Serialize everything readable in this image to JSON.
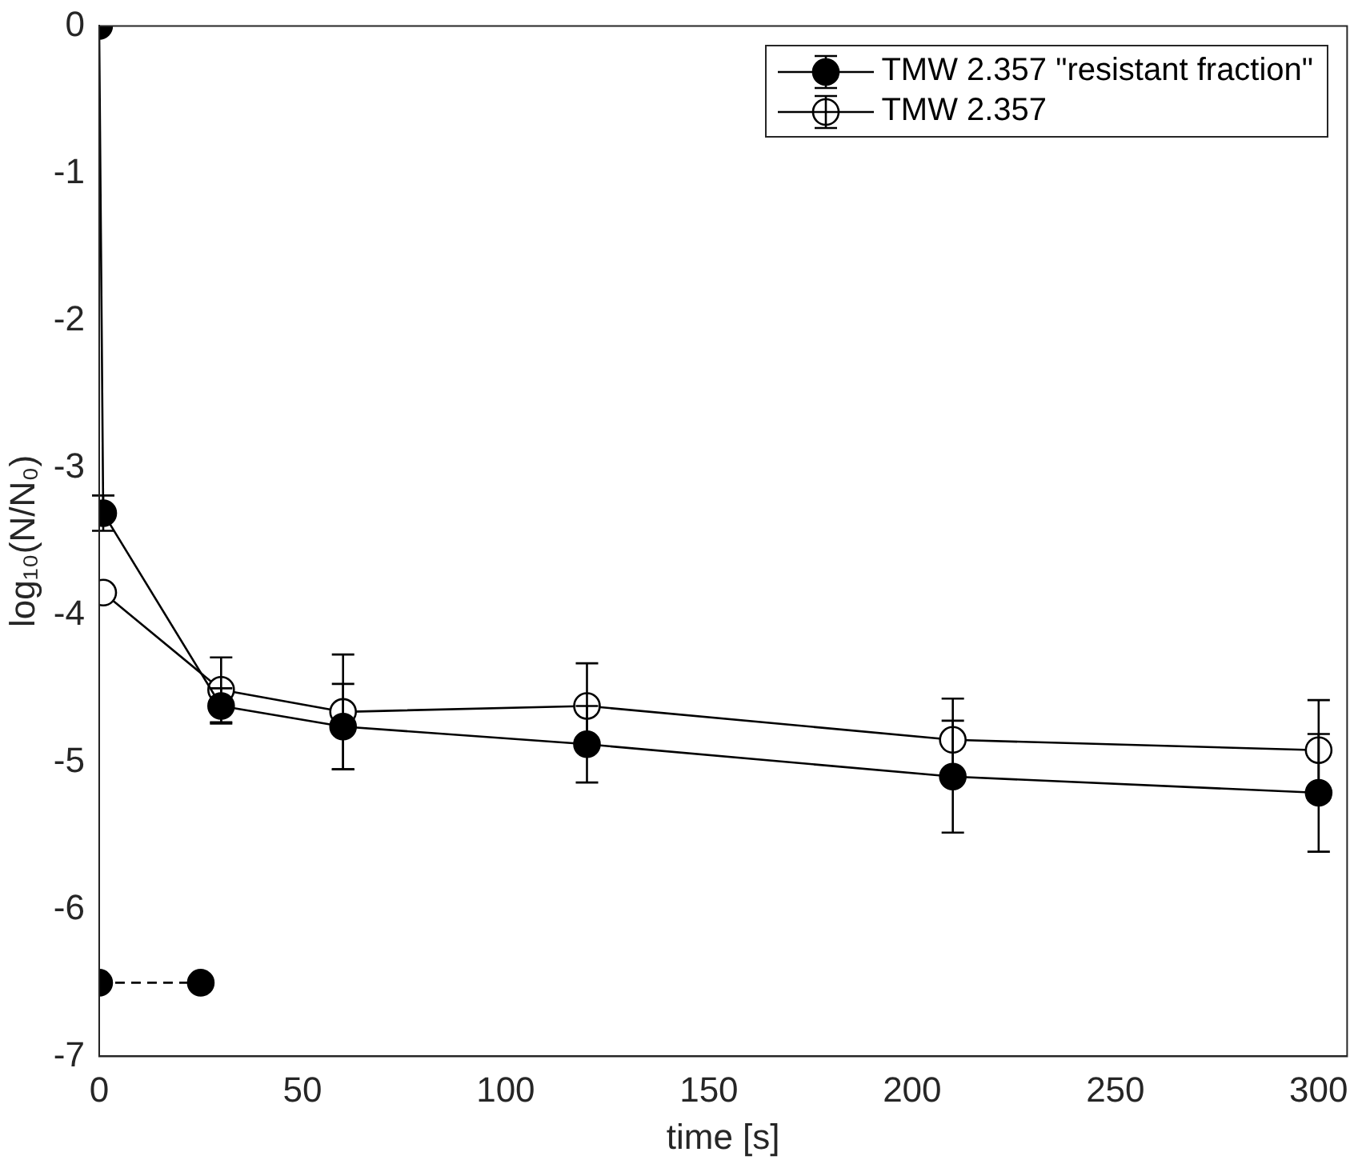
{
  "chart_data": {
    "type": "line",
    "xlabel": "time [s]",
    "ylabel": "log₁₀(N/N₀)",
    "xlim": [
      0,
      307
    ],
    "xticks": [
      0,
      50,
      100,
      150,
      200,
      250,
      300
    ],
    "ylim": [
      -7,
      0
    ],
    "yticks": [
      -7,
      -6,
      -5,
      -4,
      -3,
      -2,
      -1,
      0
    ],
    "grid": false,
    "legend": "top right",
    "marker": "circle",
    "line_style": "solid",
    "series": [
      {
        "name": "TMW 2.357 \"resistant fraction\"",
        "color": "#000000",
        "x": [
          0,
          1,
          30,
          60,
          120,
          210,
          300
        ],
        "values": [
          0,
          -3.31,
          -4.62,
          -4.76,
          -4.88,
          -5.1,
          -5.21
        ],
        "errors": [
          null,
          0.12,
          0.12,
          0.29,
          0.26,
          0.38,
          0.4
        ]
      },
      {
        "name": "TMW 2.357",
        "color": "#000000",
        "x": [
          1,
          30,
          60,
          120,
          210,
          300
        ],
        "values": [
          -3.85,
          -4.51,
          -4.66,
          -4.62,
          -4.85,
          -4.92
        ],
        "errors": [
          null,
          0.22,
          0.39,
          0.29,
          0.28,
          0.34
        ]
      },
      {
        "color": "#000000",
        "x": [
          0,
          25
        ],
        "values": [
          -6.5,
          -6.5
        ],
        "line_style": "dashed"
      }
    ]
  }
}
